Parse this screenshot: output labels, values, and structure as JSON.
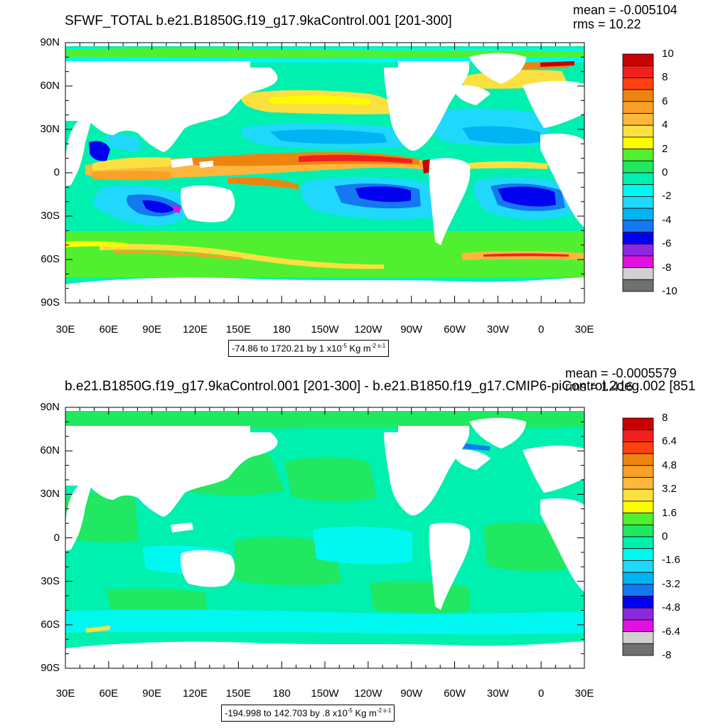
{
  "panels": [
    {
      "title": "SFWF_TOTAL b.e21.B1850G.f19_g17.9kaControl.001 [201-300]",
      "mean_text": "mean = -0.005104",
      "rms_text": "rms = 10.22",
      "info_text": "-74.86 to 1720.21 by 1 x10",
      "info_exp": "-5",
      "info_unit": " Kg m",
      "info_unit_exp": "-2 s-1",
      "colorbar_labels": [
        "10",
        "8",
        "6",
        "4",
        "2",
        "0",
        "-2",
        "-4",
        "-6",
        "-8",
        "-10"
      ],
      "colorbar_colors": [
        "#c80000",
        "#f02020",
        "#ff4010",
        "#ee8410",
        "#f8a028",
        "#fcb83c",
        "#fce040",
        "#fcfc00",
        "#50f030",
        "#20e860",
        "#00f0b0",
        "#00f8f0",
        "#20d8fc",
        "#00b4f4",
        "#1478f0",
        "#0000f0",
        "#8c28e0",
        "#e010e0",
        "#d0d0d0",
        "#707070"
      ],
      "colorbar_label_values": [
        10,
        8,
        6,
        4,
        2,
        0,
        -2,
        -4,
        -6,
        -8,
        -10
      ]
    },
    {
      "title": "b.e21.B1850G.f19_g17.9kaControl.001 [201-300] - b.e21.B1850.f19_g17.CMIP6-piControl.2deg.002 [851",
      "mean_text": "mean = -0.0005579",
      "rms_text": "rms = 1.416",
      "info_text": "-194.998 to 142.703 by .8 x10",
      "info_exp": "-5",
      "info_unit": " Kg m",
      "info_unit_exp": "-2 s-1",
      "colorbar_labels": [
        "8",
        "6.4",
        "4.8",
        "3.2",
        "1.6",
        "0",
        "-1.6",
        "-3.2",
        "-4.8",
        "-6.4",
        "-8"
      ],
      "colorbar_colors": [
        "#c80000",
        "#f02020",
        "#ff4010",
        "#ee8410",
        "#f8a028",
        "#fcb83c",
        "#fce040",
        "#fcfc00",
        "#50f030",
        "#20e860",
        "#00f0b0",
        "#00f8f0",
        "#20d8fc",
        "#00b4f4",
        "#1478f0",
        "#0000f0",
        "#8c28e0",
        "#e010e0",
        "#d0d0d0",
        "#707070"
      ],
      "colorbar_label_values": [
        8,
        6.4,
        4.8,
        3.2,
        1.6,
        0,
        -1.6,
        -3.2,
        -4.8,
        -6.4,
        -8
      ]
    }
  ],
  "axes": {
    "y_labels": [
      "90N",
      "60N",
      "30N",
      "0",
      "30S",
      "60S",
      "90S"
    ],
    "x_labels": [
      "30E",
      "60E",
      "90E",
      "120E",
      "150E",
      "180",
      "150W",
      "120W",
      "90W",
      "60W",
      "30W",
      "0",
      "30E"
    ]
  },
  "colors": {
    "land": "#ffffff",
    "ocean_base": "#00f0b0"
  }
}
